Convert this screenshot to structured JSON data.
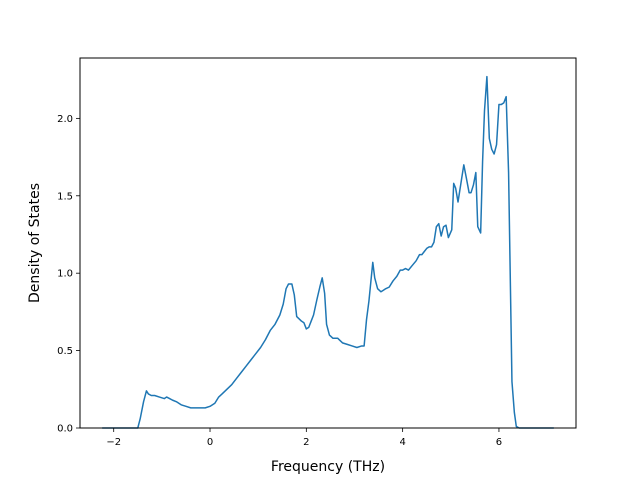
{
  "chart_data": {
    "type": "line",
    "title": "",
    "xlabel": "Frequency (THz)",
    "ylabel": "Density of States",
    "xlim": [
      -2.7,
      7.6
    ],
    "ylim": [
      0.0,
      2.39
    ],
    "xticks": [
      -2,
      0,
      2,
      4,
      6
    ],
    "xtick_labels": [
      "−2",
      "0",
      "2",
      "4",
      "6"
    ],
    "yticks": [
      0.0,
      0.5,
      1.0,
      1.5,
      2.0
    ],
    "ytick_labels": [
      "0.0",
      "0.5",
      "1.0",
      "1.5",
      "2.0"
    ],
    "grid": false,
    "colors": {
      "series": "#1f77b4"
    },
    "series": [
      {
        "x": [
          -2.24,
          -1.5,
          -1.45,
          -1.38,
          -1.32,
          -1.28,
          -1.22,
          -1.15,
          -1.05,
          -0.95,
          -0.9,
          -0.84,
          -0.78,
          -0.7,
          -0.6,
          -0.5,
          -0.4,
          -0.3,
          -0.2,
          -0.1,
          0.0,
          0.1,
          0.18,
          0.25,
          0.35,
          0.45,
          0.55,
          0.65,
          0.75,
          0.85,
          0.95,
          1.05,
          1.15,
          1.25,
          1.35,
          1.45,
          1.52,
          1.58,
          1.63,
          1.7,
          1.75,
          1.8,
          1.9,
          1.95,
          2.0,
          2.05,
          2.1,
          2.15,
          2.22,
          2.28,
          2.33,
          2.38,
          2.42,
          2.48,
          2.55,
          2.65,
          2.75,
          2.85,
          2.95,
          3.05,
          3.15,
          3.2,
          3.25,
          3.3,
          3.38,
          3.42,
          3.48,
          3.55,
          3.6,
          3.65,
          3.72,
          3.8,
          3.88,
          3.95,
          4.0,
          4.06,
          4.12,
          4.2,
          4.28,
          4.35,
          4.4,
          4.45,
          4.5,
          4.55,
          4.6,
          4.65,
          4.7,
          4.75,
          4.8,
          4.85,
          4.9,
          4.95,
          5.02,
          5.06,
          5.1,
          5.15,
          5.22,
          5.27,
          5.32,
          5.38,
          5.42,
          5.47,
          5.52,
          5.56,
          5.62,
          5.66,
          5.7,
          5.75,
          5.8,
          5.85,
          5.9,
          5.95,
          6.0,
          6.05,
          6.1,
          6.15,
          6.2,
          6.27,
          6.32,
          6.36,
          6.42,
          6.6,
          7.14
        ],
        "y": [
          0.0,
          0.0,
          0.06,
          0.17,
          0.24,
          0.22,
          0.21,
          0.21,
          0.2,
          0.19,
          0.2,
          0.19,
          0.18,
          0.17,
          0.15,
          0.14,
          0.13,
          0.13,
          0.13,
          0.13,
          0.14,
          0.16,
          0.2,
          0.22,
          0.25,
          0.28,
          0.32,
          0.36,
          0.4,
          0.44,
          0.48,
          0.52,
          0.57,
          0.63,
          0.67,
          0.73,
          0.8,
          0.9,
          0.93,
          0.93,
          0.86,
          0.72,
          0.69,
          0.68,
          0.64,
          0.65,
          0.69,
          0.73,
          0.83,
          0.91,
          0.97,
          0.87,
          0.67,
          0.6,
          0.58,
          0.58,
          0.55,
          0.54,
          0.53,
          0.52,
          0.53,
          0.53,
          0.7,
          0.82,
          1.07,
          0.97,
          0.9,
          0.88,
          0.89,
          0.9,
          0.91,
          0.95,
          0.98,
          1.02,
          1.02,
          1.03,
          1.02,
          1.05,
          1.08,
          1.12,
          1.12,
          1.14,
          1.16,
          1.17,
          1.17,
          1.2,
          1.3,
          1.32,
          1.24,
          1.3,
          1.31,
          1.23,
          1.28,
          1.58,
          1.55,
          1.46,
          1.6,
          1.7,
          1.62,
          1.52,
          1.52,
          1.57,
          1.65,
          1.3,
          1.26,
          1.72,
          2.05,
          2.27,
          1.87,
          1.8,
          1.77,
          1.83,
          2.09,
          2.09,
          2.1,
          2.14,
          1.65,
          0.3,
          0.1,
          0.01,
          0.0,
          0.0,
          0.0
        ]
      }
    ]
  }
}
